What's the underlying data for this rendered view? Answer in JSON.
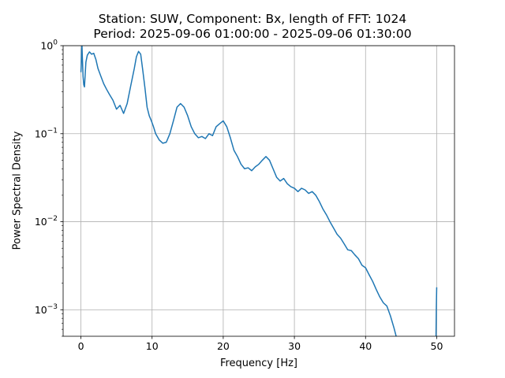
{
  "chart_data": {
    "type": "line",
    "title_line1": "Station: SUW, Component: Bx, length of FFT: 1024",
    "title_line2": "Period: 2025-09-06 01:00:00 - 2025-09-06 01:30:00",
    "xlabel": "Frequency [Hz]",
    "ylabel": "Power Spectral Density",
    "yscale": "log",
    "grid": true,
    "xlim": [
      -2.5,
      52.5
    ],
    "ylim": [
      0.0005,
      1
    ],
    "xticks": [
      0,
      10,
      20,
      30,
      40,
      50
    ],
    "yticks": [
      {
        "value": 1,
        "base": "10",
        "exp": "0"
      },
      {
        "value": 0.1,
        "base": "10",
        "exp": "−1"
      },
      {
        "value": 0.01,
        "base": "10",
        "exp": "−2"
      },
      {
        "value": 0.001,
        "base": "10",
        "exp": "−3"
      }
    ],
    "line_color": "#1f77b4",
    "series": [
      {
        "x": [
          0,
          0.05,
          0.1,
          0.15,
          0.2,
          0.3,
          0.4,
          0.5,
          0.7,
          0.9,
          1.2,
          1.5,
          1.8,
          2.1,
          2.4,
          2.8,
          3.2,
          3.6,
          4.0,
          4.5,
          5.0,
          5.5,
          6.0,
          6.5,
          7.0,
          7.5,
          7.8,
          8.1,
          8.4,
          8.7,
          9.0,
          9.3,
          9.6,
          9.9,
          10.2,
          10.5,
          11.0,
          11.5,
          12.0,
          12.5,
          13.0,
          13.5,
          14.0,
          14.5,
          15.0,
          15.5,
          16.0,
          16.5,
          17.0,
          17.5,
          18.0,
          18.5,
          19.0,
          19.5,
          20.0,
          20.5,
          21.0,
          21.5,
          22.0,
          22.5,
          23.0,
          23.5,
          24.0,
          24.5,
          25.0,
          25.5,
          26.0,
          26.5,
          27.0,
          27.5,
          28.0,
          28.5,
          29.0,
          29.5,
          30.0,
          30.5,
          31.0,
          31.5,
          32.0,
          32.5,
          33.0,
          33.5,
          34.0,
          34.5,
          35.0,
          35.5,
          36.0,
          36.5,
          37.0,
          37.5,
          38.0,
          38.5,
          39.0,
          39.5,
          40.0,
          40.5,
          41.0,
          41.5,
          42.0,
          42.5,
          43.0,
          43.5,
          44.0,
          44.3
        ],
        "y": [
          0.5,
          0.6,
          0.9,
          1.0,
          0.75,
          0.45,
          0.36,
          0.34,
          0.65,
          0.78,
          0.85,
          0.8,
          0.82,
          0.7,
          0.55,
          0.45,
          0.37,
          0.32,
          0.28,
          0.24,
          0.19,
          0.21,
          0.17,
          0.22,
          0.35,
          0.55,
          0.75,
          0.86,
          0.8,
          0.52,
          0.33,
          0.2,
          0.16,
          0.14,
          0.12,
          0.1,
          0.085,
          0.078,
          0.08,
          0.1,
          0.14,
          0.2,
          0.22,
          0.2,
          0.16,
          0.12,
          0.1,
          0.09,
          0.093,
          0.088,
          0.1,
          0.095,
          0.12,
          0.13,
          0.14,
          0.12,
          0.09,
          0.065,
          0.055,
          0.045,
          0.04,
          0.041,
          0.038,
          0.042,
          0.045,
          0.05,
          0.055,
          0.05,
          0.04,
          0.032,
          0.029,
          0.031,
          0.027,
          0.025,
          0.024,
          0.022,
          0.024,
          0.023,
          0.021,
          0.022,
          0.02,
          0.017,
          0.014,
          0.012,
          0.01,
          0.0085,
          0.0072,
          0.0065,
          0.0056,
          0.0048,
          0.0047,
          0.0042,
          0.0038,
          0.0032,
          0.003,
          0.0025,
          0.0021,
          0.0017,
          0.0014,
          0.0012,
          0.0011,
          0.00085,
          0.00062,
          0.0005
        ]
      },
      {
        "x": [
          49.9,
          49.95,
          50.0
        ],
        "y": [
          0.0005,
          0.0011,
          0.0018
        ]
      }
    ]
  }
}
